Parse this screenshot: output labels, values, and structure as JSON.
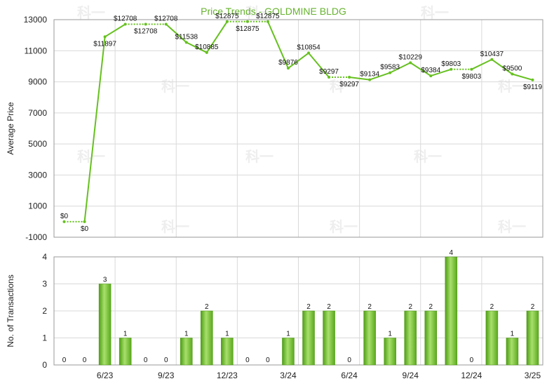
{
  "chart_data": [
    {
      "type": "line",
      "title": "Price Trends - GOLDMINE BLDG",
      "ylabel": "Average Price",
      "ylim": [
        -1000,
        13000
      ],
      "yticks": [
        -1000,
        1000,
        3000,
        5000,
        7000,
        9000,
        11000,
        13000
      ],
      "x": [
        "2023-04",
        "2023-05",
        "2023-06",
        "2023-07",
        "2023-08",
        "2023-09",
        "2023-10",
        "2023-11",
        "2023-12",
        "2024-01",
        "2024-02",
        "2024-03",
        "2024-04",
        "2024-05",
        "2024-06",
        "2024-07",
        "2024-08",
        "2024-09",
        "2024-10",
        "2024-11",
        "2024-12",
        "2025-01",
        "2025-02",
        "2025-03"
      ],
      "values": [
        0,
        0,
        11897,
        12708,
        12708,
        12708,
        11538,
        10885,
        12875,
        12875,
        12875,
        9876,
        10854,
        9297,
        9297,
        9134,
        9583,
        10229,
        9384,
        9803,
        9803,
        10437,
        9500,
        9119
      ],
      "labels": [
        "$0",
        "$0",
        "$11897",
        "$12708",
        "$12708",
        "$12708",
        "$11538",
        "$10885",
        "$12875",
        "$12875",
        "$12875",
        "$9876",
        "$10854",
        "$9297",
        "$9297",
        "$9134",
        "$9583",
        "$10229",
        "$9384",
        "$9803",
        "$9803",
        "$10437",
        "$9500",
        "$9119"
      ],
      "label_pos": [
        "above",
        "below",
        "below",
        "above",
        "below",
        "above",
        "above",
        "above",
        "above",
        "below",
        "above",
        "above",
        "above",
        "above",
        "below",
        "above",
        "above",
        "above",
        "above",
        "above",
        "below",
        "above",
        "above",
        "below"
      ],
      "dotted_segments": [
        0,
        3,
        4,
        8,
        9,
        13,
        19
      ],
      "grid": true,
      "color": "#66c01f"
    },
    {
      "type": "bar",
      "ylabel": "No. of Transactions",
      "ylim": [
        0,
        4
      ],
      "yticks": [
        0,
        1,
        2,
        3,
        4
      ],
      "values": [
        0,
        0,
        3,
        1,
        0,
        0,
        1,
        2,
        1,
        0,
        0,
        1,
        2,
        2,
        0,
        2,
        1,
        2,
        2,
        4,
        0,
        2,
        1,
        2
      ],
      "labels": [
        "0",
        "0",
        "3",
        "1",
        "0",
        "0",
        "1",
        "2",
        "1",
        "0",
        "0",
        "1",
        "2",
        "2",
        "0",
        "2",
        "1",
        "2",
        "2",
        "4",
        "0",
        "2",
        "1",
        "2"
      ],
      "grid": true,
      "color": "#66c01f"
    }
  ],
  "x_axis": {
    "tick_labels": [
      "6/23",
      "9/23",
      "12/23",
      "3/24",
      "6/24",
      "9/24",
      "12/24",
      "3/25"
    ],
    "tick_index": [
      2,
      5,
      8,
      11,
      14,
      17,
      20,
      23
    ]
  }
}
